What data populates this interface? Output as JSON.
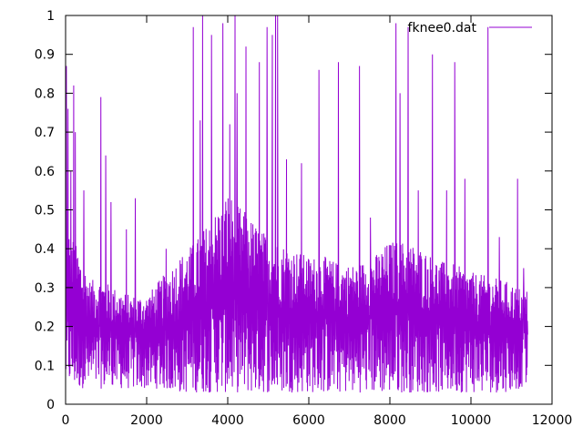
{
  "chart_data": {
    "type": "line",
    "title": "",
    "xlabel": "",
    "ylabel": "",
    "xlim": [
      0,
      12000
    ],
    "ylim": [
      0,
      1
    ],
    "xticks": [
      0,
      2000,
      4000,
      6000,
      8000,
      10000,
      12000
    ],
    "yticks": [
      0,
      0.1,
      0.2,
      0.3,
      0.4,
      0.5,
      0.6,
      0.7,
      0.8,
      0.9,
      1
    ],
    "xtick_labels": [
      "0",
      "2000",
      "4000",
      "6000",
      "8000",
      "10000",
      "12000"
    ],
    "ytick_labels": [
      "0",
      "0.1",
      "0.2",
      "0.3",
      "0.4",
      "0.5",
      "0.6",
      "0.7",
      "0.8",
      "0.9",
      "1"
    ],
    "grid": false,
    "legend": {
      "position": "top-right"
    },
    "series": [
      {
        "name": "fknee0.dat",
        "color": "#9400d3",
        "x_range": [
          1,
          11400
        ],
        "envelope": {
          "x": [
            0,
            100,
            300,
            600,
            900,
            1200,
            1600,
            2000,
            2400,
            2800,
            3200,
            3600,
            4000,
            4200,
            4400,
            4800,
            5200,
            5600,
            6000,
            6400,
            6800,
            7200,
            7600,
            8000,
            8400,
            8800,
            9200,
            9600,
            10000,
            10400,
            10800,
            11200,
            11400
          ],
          "low": [
            0.05,
            0.05,
            0.04,
            0.04,
            0.04,
            0.04,
            0.04,
            0.04,
            0.04,
            0.03,
            0.03,
            0.03,
            0.03,
            0.03,
            0.03,
            0.03,
            0.03,
            0.03,
            0.03,
            0.03,
            0.03,
            0.03,
            0.03,
            0.03,
            0.03,
            0.03,
            0.03,
            0.03,
            0.03,
            0.03,
            0.03,
            0.04,
            0.05
          ],
          "base": [
            0.24,
            0.24,
            0.22,
            0.2,
            0.2,
            0.19,
            0.18,
            0.18,
            0.19,
            0.21,
            0.23,
            0.25,
            0.28,
            0.27,
            0.26,
            0.25,
            0.24,
            0.24,
            0.23,
            0.23,
            0.22,
            0.22,
            0.23,
            0.24,
            0.24,
            0.23,
            0.22,
            0.22,
            0.21,
            0.2,
            0.2,
            0.19,
            0.18
          ],
          "high": [
            0.5,
            0.45,
            0.4,
            0.32,
            0.32,
            0.3,
            0.28,
            0.28,
            0.33,
            0.38,
            0.42,
            0.48,
            0.55,
            0.52,
            0.5,
            0.45,
            0.42,
            0.4,
            0.38,
            0.38,
            0.36,
            0.36,
            0.38,
            0.42,
            0.42,
            0.4,
            0.37,
            0.36,
            0.34,
            0.33,
            0.32,
            0.3,
            0.3
          ]
        },
        "spikes": [
          {
            "x": 20,
            "y": 0.87
          },
          {
            "x": 60,
            "y": 0.76
          },
          {
            "x": 130,
            "y": 0.6
          },
          {
            "x": 200,
            "y": 0.82
          },
          {
            "x": 240,
            "y": 0.7
          },
          {
            "x": 450,
            "y": 0.55
          },
          {
            "x": 870,
            "y": 0.79
          },
          {
            "x": 990,
            "y": 0.64
          },
          {
            "x": 1120,
            "y": 0.52
          },
          {
            "x": 1500,
            "y": 0.45
          },
          {
            "x": 1720,
            "y": 0.53
          },
          {
            "x": 2480,
            "y": 0.4
          },
          {
            "x": 3150,
            "y": 0.97
          },
          {
            "x": 3320,
            "y": 0.73
          },
          {
            "x": 3380,
            "y": 1.0
          },
          {
            "x": 3600,
            "y": 0.95
          },
          {
            "x": 3880,
            "y": 0.98
          },
          {
            "x": 4050,
            "y": 0.72
          },
          {
            "x": 4180,
            "y": 1.0
          },
          {
            "x": 4230,
            "y": 0.8
          },
          {
            "x": 4450,
            "y": 0.92
          },
          {
            "x": 4780,
            "y": 0.88
          },
          {
            "x": 4970,
            "y": 0.97
          },
          {
            "x": 5100,
            "y": 0.95
          },
          {
            "x": 5180,
            "y": 1.0
          },
          {
            "x": 5230,
            "y": 1.0
          },
          {
            "x": 5450,
            "y": 0.63
          },
          {
            "x": 5820,
            "y": 0.62
          },
          {
            "x": 6250,
            "y": 0.86
          },
          {
            "x": 6730,
            "y": 0.88
          },
          {
            "x": 7250,
            "y": 0.87
          },
          {
            "x": 7520,
            "y": 0.48
          },
          {
            "x": 8150,
            "y": 0.98
          },
          {
            "x": 8250,
            "y": 0.8
          },
          {
            "x": 8450,
            "y": 0.97
          },
          {
            "x": 8700,
            "y": 0.55
          },
          {
            "x": 9050,
            "y": 0.9
          },
          {
            "x": 9400,
            "y": 0.55
          },
          {
            "x": 9600,
            "y": 0.88
          },
          {
            "x": 9850,
            "y": 0.58
          },
          {
            "x": 10420,
            "y": 0.97
          },
          {
            "x": 10700,
            "y": 0.43
          },
          {
            "x": 11150,
            "y": 0.58
          },
          {
            "x": 11300,
            "y": 0.35
          }
        ]
      }
    ]
  }
}
